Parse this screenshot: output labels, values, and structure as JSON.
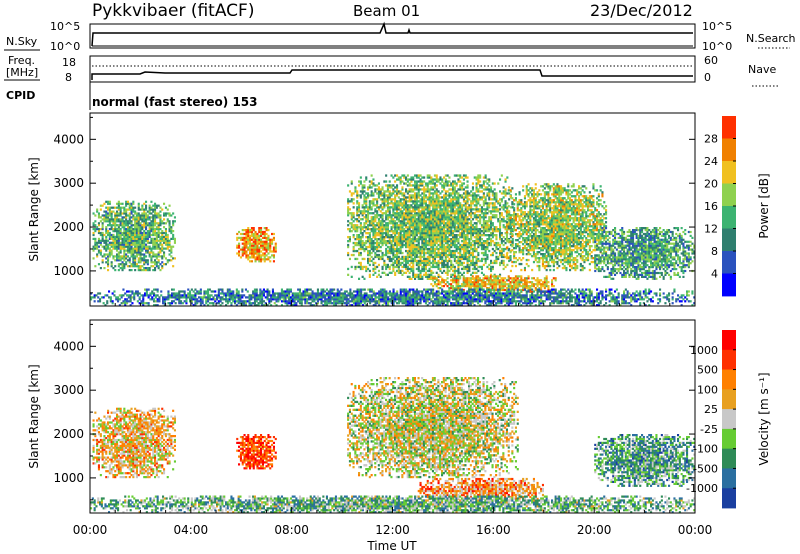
{
  "header": {
    "title": "Pykkvibaer (fitACF)",
    "beam": "Beam 01",
    "date": "23/Dec/2012"
  },
  "status_panels": {
    "nsky": {
      "label": "N.Sky",
      "tick_top": "10^5",
      "tick_bottom": "10^0"
    },
    "nsearch": {
      "label": "N.Search",
      "tick_top": "10^5",
      "tick_bottom": "10^0"
    },
    "freq": {
      "label_line1": "Freq.",
      "label_line2": "[MHz]",
      "tick_top": "18",
      "tick_bottom": "8"
    },
    "nave": {
      "label": "Nave",
      "tick_top": "60",
      "tick_bottom": "0"
    },
    "cpid": {
      "label": "CPID",
      "value": "normal (fast stereo) 153"
    }
  },
  "chart_data": [
    {
      "type": "heatmap",
      "name": "Power",
      "ylabel": "Slant Range [km]",
      "yticks": [
        "1000",
        "2000",
        "3000",
        "4000"
      ],
      "ylim": [
        200,
        4600
      ],
      "xlim_hours": [
        0,
        24
      ],
      "colorbar": {
        "label": "Power [dB]",
        "tick_labels": [
          "4",
          "8",
          "12",
          "16",
          "20",
          "24",
          "28"
        ],
        "range": [
          0,
          32
        ],
        "colors": [
          "#0000ff",
          "#2a52be",
          "#2f7f6f",
          "#3cb371",
          "#8fd14f",
          "#f0c020",
          "#f08000",
          "#ff3000"
        ]
      },
      "echo_regions": [
        {
          "t0": 0.1,
          "t1": 3.4,
          "r0": 1000,
          "r1": 2600,
          "level": 0.45
        },
        {
          "t0": 5.8,
          "t1": 7.4,
          "r0": 1200,
          "r1": 2000,
          "level": 0.75
        },
        {
          "t0": 10.2,
          "t1": 16.8,
          "r0": 800,
          "r1": 3200,
          "level": 0.5
        },
        {
          "t0": 13.5,
          "t1": 18.5,
          "r0": 500,
          "r1": 900,
          "level": 0.7
        },
        {
          "t0": 16.5,
          "t1": 20.5,
          "r0": 1000,
          "r1": 3000,
          "level": 0.55
        },
        {
          "t0": 20.0,
          "t1": 24.0,
          "r0": 800,
          "r1": 2000,
          "level": 0.4
        },
        {
          "t0": 0.0,
          "t1": 24.0,
          "r0": 200,
          "r1": 600,
          "level": 0.3
        }
      ]
    },
    {
      "type": "heatmap",
      "name": "Velocity",
      "ylabel": "Slant Range [km]",
      "yticks": [
        "1000",
        "2000",
        "3000",
        "4000"
      ],
      "ylim": [
        200,
        4600
      ],
      "xlim_hours": [
        0,
        24
      ],
      "xticks": [
        "00:00",
        "04:00",
        "08:00",
        "12:00",
        "16:00",
        "20:00",
        "00:00"
      ],
      "xlabel": "Time UT",
      "colorbar": {
        "label": "Velocity [m s⁻¹]",
        "tick_labels": [
          "1000",
          "500",
          "100",
          "25",
          "-25",
          "-100",
          "-500",
          "-1000"
        ],
        "colors": [
          "#1a3fa0",
          "#2a6fa0",
          "#2e8b57",
          "#66cc33",
          "#c8c8c8",
          "#e8a020",
          "#ff8000",
          "#ff3000",
          "#ff0000"
        ]
      },
      "echo_regions": [
        {
          "t0": 0.1,
          "t1": 3.4,
          "r0": 1000,
          "r1": 2600,
          "level": 0.6
        },
        {
          "t0": 5.8,
          "t1": 7.4,
          "r0": 1200,
          "r1": 2000,
          "level": 0.85
        },
        {
          "t0": 10.2,
          "t1": 17.0,
          "r0": 1000,
          "r1": 3300,
          "level": 0.5
        },
        {
          "t0": 13.0,
          "t1": 18.0,
          "r0": 500,
          "r1": 1000,
          "level": 0.68
        },
        {
          "t0": 20.0,
          "t1": 24.0,
          "r0": 800,
          "r1": 2000,
          "level": 0.3
        },
        {
          "t0": 0.0,
          "t1": 24.0,
          "r0": 200,
          "r1": 600,
          "level": 0.35
        }
      ]
    }
  ]
}
